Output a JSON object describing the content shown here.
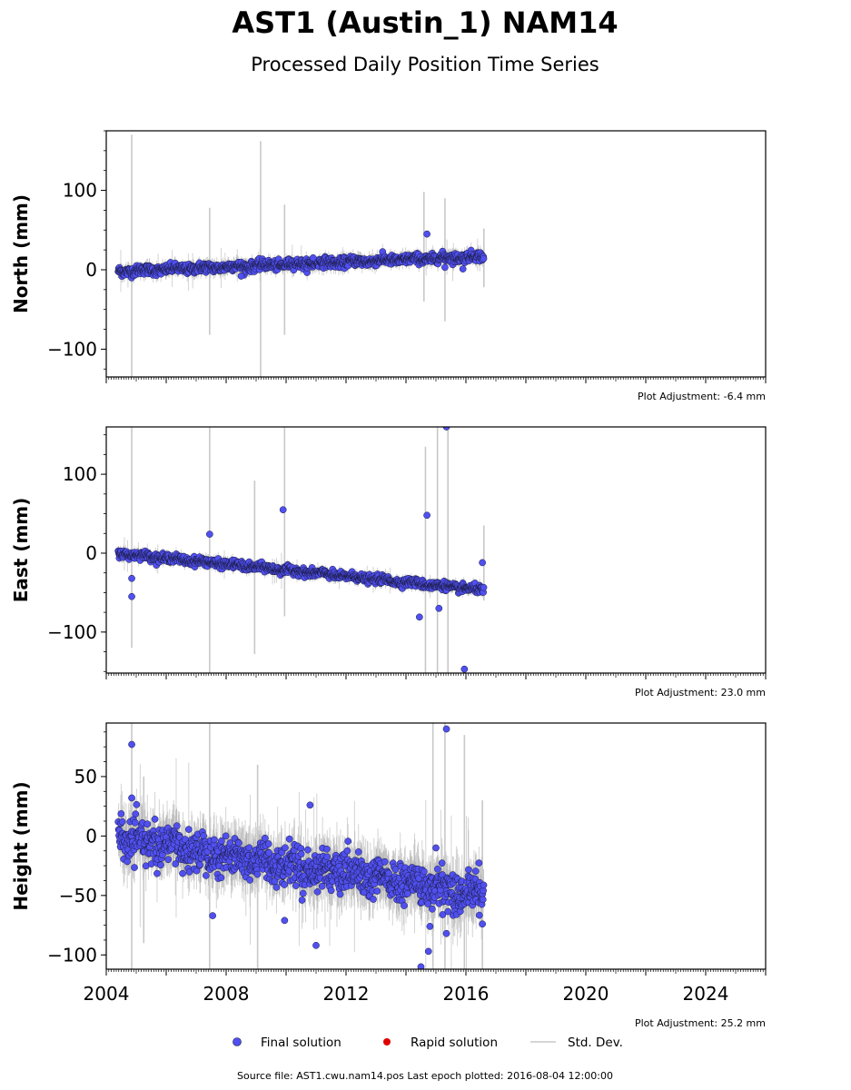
{
  "title": "AST1 (Austin_1) NAM14",
  "subtitle": "Processed Daily Position Time Series",
  "footer": "Source file: AST1.cwu.nam14.pos  Last epoch plotted: 2016-08-04 12:00:00",
  "legend": {
    "final": "Final solution",
    "rapid": "Rapid solution",
    "std": "Std. Dev."
  },
  "colors": {
    "final": "#5050f0",
    "final_edge": "#1a1a40",
    "rapid": "#e00000",
    "std": "#c8c8c8"
  },
  "chart_data": [
    {
      "type": "scatter",
      "ylabel": "North (mm)",
      "adjustment": "Plot Adjustment: -6.4 mm",
      "xlim": [
        2004.0,
        2026.0
      ],
      "ylim": [
        -135,
        175
      ],
      "yticks": [
        -100,
        0,
        100
      ],
      "trend": {
        "x": [
          2004.4,
          2016.6
        ],
        "y": [
          -2,
          17
        ]
      },
      "noise": 3,
      "outliers": [
        [
          2014.7,
          45
        ],
        [
          2008.5,
          -8
        ],
        [
          2015.9,
          1
        ],
        [
          2015.3,
          3
        ],
        [
          2010.9,
          15
        ]
      ],
      "errorbar_spikes": [
        [
          2004.85,
          170,
          -135
        ],
        [
          2009.15,
          162,
          -135
        ],
        [
          2007.45,
          78,
          -82
        ],
        [
          2009.95,
          82,
          -82
        ],
        [
          2014.6,
          98,
          -40
        ],
        [
          2015.3,
          90,
          -65
        ],
        [
          2016.6,
          52,
          -22
        ]
      ]
    },
    {
      "type": "scatter",
      "ylabel": "East (mm)",
      "adjustment": "Plot Adjustment: 23.0 mm",
      "xlim": [
        2004.0,
        2026.0
      ],
      "ylim": [
        -152,
        160
      ],
      "yticks": [
        -100,
        0,
        100
      ],
      "trend": {
        "x": [
          2004.4,
          2016.6
        ],
        "y": [
          0,
          -47
        ]
      },
      "noise": 2.5,
      "outliers": [
        [
          2009.9,
          55
        ],
        [
          2007.45,
          24
        ],
        [
          2014.7,
          48
        ],
        [
          2015.35,
          160
        ],
        [
          2004.85,
          -55
        ],
        [
          2014.45,
          -81
        ],
        [
          2015.1,
          -70
        ],
        [
          2015.95,
          -147
        ],
        [
          2004.85,
          -32
        ],
        [
          2016.55,
          -12
        ]
      ],
      "errorbar_spikes": [
        [
          2004.85,
          160,
          -120
        ],
        [
          2007.45,
          160,
          -152
        ],
        [
          2009.95,
          160,
          -80
        ],
        [
          2008.95,
          92,
          -128
        ],
        [
          2014.65,
          135,
          -152
        ],
        [
          2015.05,
          160,
          -152
        ],
        [
          2015.4,
          160,
          -152
        ],
        [
          2016.6,
          35,
          -60
        ]
      ]
    },
    {
      "type": "scatter",
      "ylabel": "Height (mm)",
      "adjustment": "Plot Adjustment: 25.2 mm",
      "xlim": [
        2004.0,
        2026.0
      ],
      "ylim": [
        -112,
        95
      ],
      "yticks": [
        -100,
        -50,
        0,
        50
      ],
      "xticks": [
        2004,
        2008,
        2012,
        2016,
        2020,
        2024
      ],
      "trend": {
        "x": [
          2004.4,
          2016.6
        ],
        "y": [
          -2,
          -50
        ]
      },
      "noise": 8,
      "outliers": [
        [
          2004.85,
          77
        ],
        [
          2004.85,
          32
        ],
        [
          2010.8,
          26
        ],
        [
          2007.55,
          -67
        ],
        [
          2009.95,
          -71
        ],
        [
          2011.0,
          -92
        ],
        [
          2014.75,
          -97
        ],
        [
          2014.8,
          -76
        ],
        [
          2015.35,
          -82
        ],
        [
          2015.35,
          90
        ],
        [
          2016.55,
          -74
        ],
        [
          2015.0,
          -10
        ],
        [
          2014.5,
          -110
        ]
      ],
      "errorbar_spikes": [
        [
          2004.85,
          95,
          -112
        ],
        [
          2007.45,
          95,
          -112
        ],
        [
          2009.05,
          60,
          -112
        ],
        [
          2014.9,
          95,
          -112
        ],
        [
          2015.3,
          95,
          -112
        ],
        [
          2015.95,
          85,
          -112
        ],
        [
          2016.55,
          30,
          -112
        ],
        [
          2005.25,
          50,
          -90
        ]
      ]
    }
  ]
}
